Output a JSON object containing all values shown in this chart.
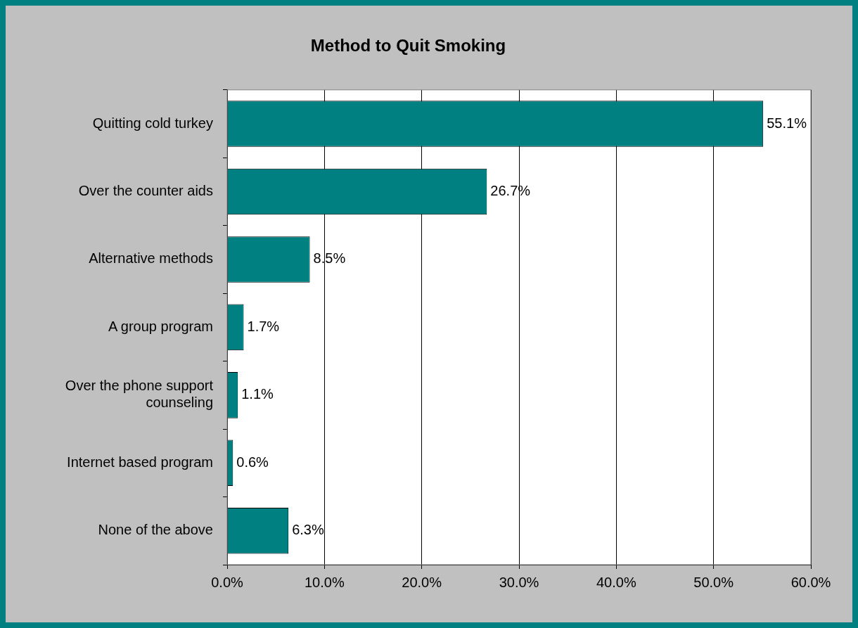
{
  "chart_data": {
    "type": "bar",
    "orientation": "horizontal",
    "title": "Method to Quit Smoking",
    "categories": [
      "Quitting cold turkey",
      "Over the counter aids",
      "Alternative methods",
      "A group program",
      "Over the phone support counseling",
      "Internet based program",
      "None of the above"
    ],
    "values": [
      55.1,
      26.7,
      8.5,
      1.7,
      1.1,
      0.6,
      6.3
    ],
    "value_labels": [
      "55.1%",
      "26.7%",
      "8.5%",
      "1.7%",
      "1.1%",
      "0.6%",
      "6.3%"
    ],
    "color": "#008080",
    "xlim": [
      0,
      60
    ],
    "xticks": [
      {
        "value": 0,
        "label": "0.0%"
      },
      {
        "value": 10,
        "label": "10.0%"
      },
      {
        "value": 20,
        "label": "20.0%"
      },
      {
        "value": 30,
        "label": "30.0%"
      },
      {
        "value": 40,
        "label": "40.0%"
      },
      {
        "value": 50,
        "label": "50.0%"
      },
      {
        "value": 60,
        "label": "60.0%"
      }
    ],
    "grid": "x",
    "legend": false
  }
}
